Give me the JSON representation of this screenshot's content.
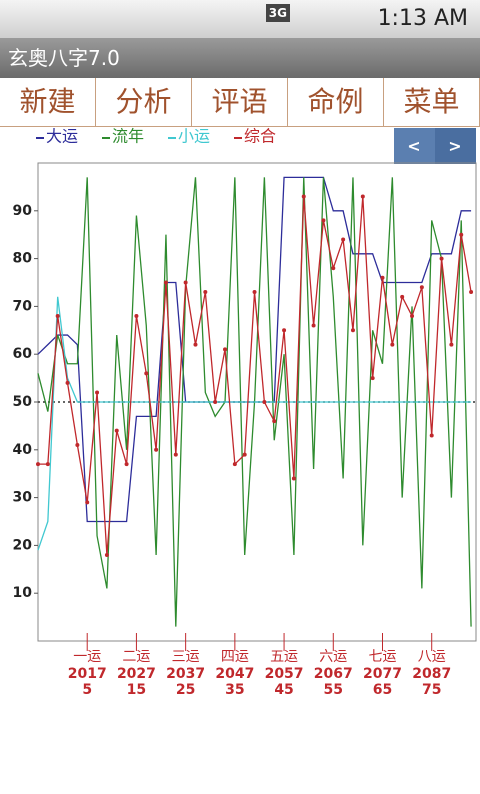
{
  "status_bar": {
    "network": "3G",
    "time": "1:13 AM"
  },
  "app_title": "玄奥八字7.0",
  "tabs": [
    "新建",
    "分析",
    "评语",
    "命例",
    "菜单"
  ],
  "nav_buttons": [
    "<",
    ">"
  ],
  "chart_data": {
    "type": "line",
    "x": [
      -5,
      -3,
      -1,
      1,
      3,
      5,
      7,
      9,
      11,
      13,
      15,
      17,
      19,
      21,
      23,
      25,
      27,
      29,
      31,
      33,
      35,
      37,
      39,
      41,
      43,
      45,
      47,
      49,
      51,
      53,
      55,
      57,
      59,
      61,
      63,
      65,
      67,
      69,
      71,
      73,
      75,
      77,
      79,
      81,
      83
    ],
    "xlim": [
      -5,
      84
    ],
    "xticks": [
      5,
      15,
      25,
      35,
      45,
      55,
      65,
      75
    ],
    "xtick_names": [
      "一运",
      "二运",
      "三运",
      "四运",
      "五运",
      "六运",
      "七运",
      "八运"
    ],
    "xtick_years": [
      2017,
      2027,
      2037,
      2047,
      2057,
      2067,
      2077,
      2087
    ],
    "ylim": [
      0,
      100
    ],
    "yticks": [
      10,
      20,
      30,
      40,
      50,
      60,
      70,
      80,
      90
    ],
    "reference_line": 50,
    "series": [
      {
        "name": "大运",
        "color": "#2d2d9a",
        "values": [
          60,
          62,
          64,
          64,
          62,
          25,
          25,
          25,
          25,
          25,
          47,
          47,
          47,
          75,
          75,
          50,
          50,
          50,
          50,
          50,
          50,
          50,
          50,
          50,
          50,
          97,
          97,
          97,
          97,
          97,
          90,
          90,
          81,
          81,
          81,
          75,
          75,
          75,
          75,
          75,
          81,
          81,
          81,
          90,
          90
        ]
      },
      {
        "name": "流年",
        "color": "#2e8b2e",
        "values": [
          56,
          48,
          64,
          58,
          58,
          97,
          22,
          11,
          64,
          40,
          89,
          66,
          18,
          85,
          3,
          74,
          97,
          52,
          47,
          50,
          97,
          18,
          50,
          97,
          42,
          60,
          18,
          97,
          36,
          97,
          72,
          34,
          97,
          20,
          65,
          58,
          97,
          30,
          70,
          11,
          88,
          80,
          30,
          88,
          3
        ]
      },
      {
        "name": "小运",
        "color": "#40c8d0",
        "values": [
          19,
          25,
          72,
          55,
          50,
          50,
          50,
          50,
          50,
          50,
          50,
          50,
          50,
          50,
          50,
          50,
          50,
          50,
          50,
          50,
          50,
          50,
          50,
          50,
          50,
          50,
          50,
          50,
          50,
          50,
          50,
          50,
          50,
          50,
          50,
          50,
          50,
          50,
          50,
          50,
          50,
          50,
          50,
          50,
          50
        ]
      },
      {
        "name": "综合",
        "color": "#c0282c",
        "values": [
          37,
          37,
          68,
          54,
          41,
          29,
          52,
          18,
          44,
          37,
          68,
          56,
          40,
          75,
          39,
          75,
          62,
          73,
          50,
          61,
          37,
          39,
          73,
          50,
          46,
          65,
          34,
          93,
          66,
          88,
          78,
          84,
          65,
          93,
          55,
          76,
          62,
          72,
          68,
          74,
          43,
          80,
          62,
          85,
          73
        ]
      }
    ]
  }
}
